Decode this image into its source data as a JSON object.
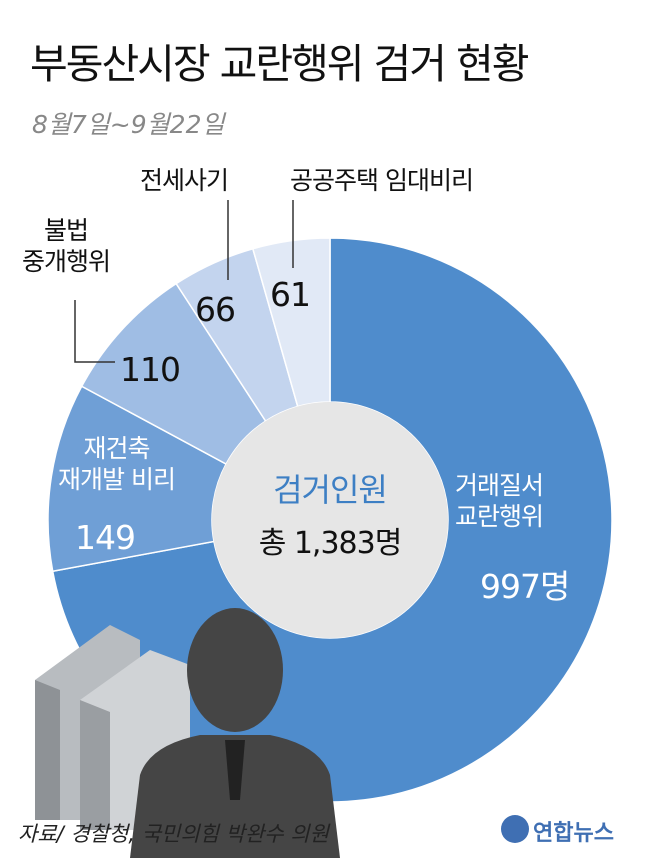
{
  "chart_data": {
    "type": "donut",
    "title": "부동산시장 교란행위 검거 현황",
    "subtitle": "8월7일~9월22일",
    "categories": [
      "거래질서\n교란행위",
      "재건축\n재개발 비리",
      "불법\n중개행위",
      "전세사기",
      "공공주택 임대비리"
    ],
    "values": [
      997,
      149,
      110,
      66,
      61
    ],
    "value_labels": [
      "997명",
      "149",
      "110",
      "66",
      "61"
    ],
    "colors": [
      "#4f8ccc",
      "#6f9fd6",
      "#9fbde4",
      "#c3d4ee",
      "#e1e9f6"
    ],
    "center_label": "검거인원",
    "total": {
      "value": 1383,
      "label": "총 1,383명"
    },
    "source": "자료/ 경찰청, 국민의힘 박완수 의원",
    "logo": "연합뉴스"
  }
}
